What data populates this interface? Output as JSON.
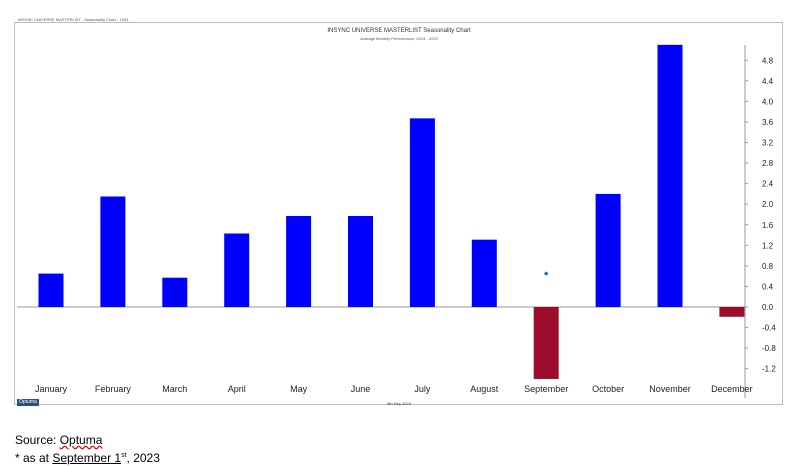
{
  "header": {
    "caption": "INSYNC UNIVERSE MASTERLIST - Seasonality Chart - 1003"
  },
  "footer": {
    "logo_text": "Optuma",
    "date": "8th Sep 2023"
  },
  "source": {
    "prefix": "Source: ",
    "name": "Optuma",
    "asat_prefix": "* as at ",
    "asat_date": "September  1",
    "asat_sup": "st",
    "asat_year": ", 2023"
  },
  "colors": {
    "positive": "#0000ff",
    "negative": "#9b0d2b",
    "marker": "#1f5fbf"
  },
  "chart_data": {
    "type": "bar",
    "title": "INSYNC UNIVERSE MASTERLIST Seasonality Chart",
    "subtitle": "Average Monthly Performance, 2014 - 2023",
    "categories": [
      "January",
      "February",
      "March",
      "April",
      "May",
      "June",
      "July",
      "August",
      "September",
      "October",
      "November",
      "December"
    ],
    "values": [
      0.65,
      2.15,
      0.57,
      1.43,
      1.77,
      1.77,
      3.67,
      1.31,
      -1.4,
      2.2,
      5.1,
      -0.19
    ],
    "markers": [
      {
        "category": "September",
        "value": 0.65
      }
    ],
    "ylim": [
      -1.4,
      5.2
    ],
    "yticks": [
      "4.8",
      "4.4",
      "4.0",
      "3.6",
      "3.2",
      "2.8",
      "2.4",
      "2.0",
      "1.6",
      "1.2",
      "0.8",
      "0.4",
      "0.0",
      "-0.4",
      "-0.8",
      "-1.2"
    ],
    "ytick_values": [
      4.8,
      4.4,
      4.0,
      3.6,
      3.2,
      2.8,
      2.4,
      2.0,
      1.6,
      1.2,
      0.8,
      0.4,
      0.0,
      -0.4,
      -0.8,
      -1.2
    ],
    "y_axis_position": "right",
    "grid": false,
    "legend": "none"
  }
}
